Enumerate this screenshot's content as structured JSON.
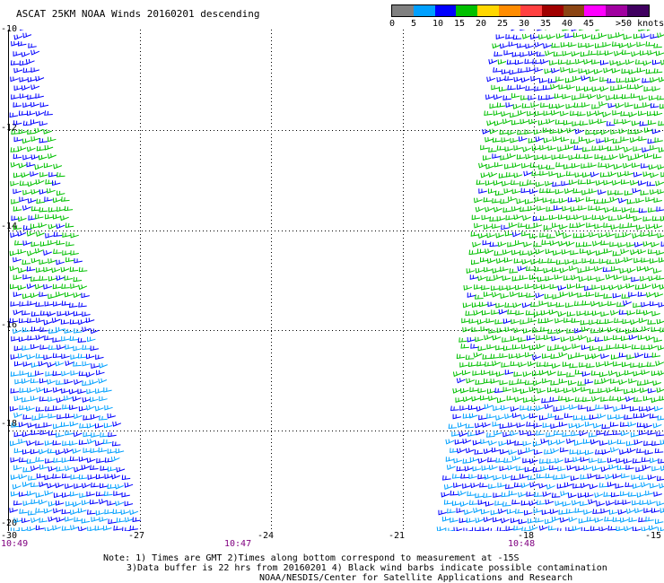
{
  "title": "ASCAT 25KM NOAA Winds 20160201 descending",
  "legend": {
    "colors": [
      "#808080",
      "#00a0ff",
      "#0000ff",
      "#00c000",
      "#ffd700",
      "#ff8c00",
      "#ff4040",
      "#a00000",
      "#8b4513",
      "#ff00ff",
      "#a000a0",
      "#400060"
    ],
    "labels": [
      "0",
      "5",
      "10",
      "15",
      "20",
      "25",
      "30",
      "35",
      "40",
      "45",
      ">50 knots"
    ]
  },
  "axes": {
    "y_labels": [
      "-10",
      "-12",
      "-14",
      "-16",
      "-18",
      "-20"
    ],
    "x_labels": [
      "-30",
      "-27",
      "-24",
      "-21",
      "-18",
      "-15"
    ]
  },
  "times": [
    "10:49",
    "10:47",
    "10:48"
  ],
  "notes": [
    "Note: 1) Times are GMT 2)Times along bottom correspond to measurement at -15S",
    "3)Data buffer is 22 hrs from 20160201 4) Black wind barbs indicate possible contamination",
    "NOAA/NESDIS/Center for Satellite Applications and Research"
  ],
  "map": {
    "lon_range": [
      -30,
      -15
    ],
    "lat_range": [
      -20,
      -10
    ],
    "gridlines": "dotted",
    "wind_colors": {
      "low": "#00a0ff",
      "mid": "#0000ff",
      "high": "#00c000"
    }
  }
}
